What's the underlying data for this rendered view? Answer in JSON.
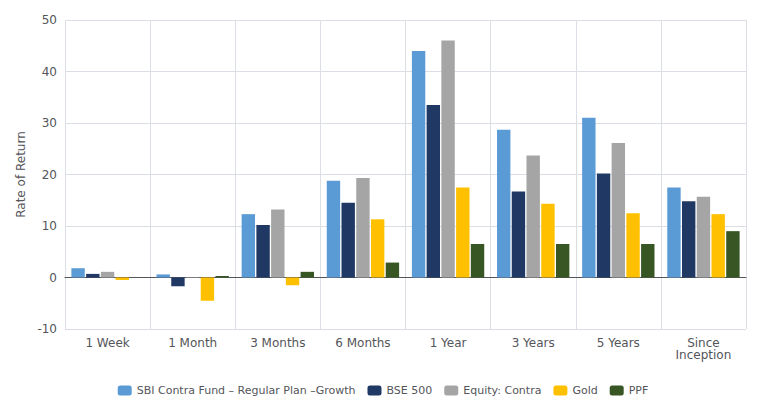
{
  "chart_data": {
    "type": "bar",
    "categories": [
      "1 Week",
      "1 Month",
      "3 Months",
      "6 Months",
      "1 Year",
      "3 Years",
      "5 Years",
      "Since\nInception"
    ],
    "series": [
      {
        "name": "SBI Contra Fund – Regular Plan –Growth",
        "color": "#5B9BD5",
        "values": [
          1.8,
          0.6,
          12.3,
          18.8,
          44.0,
          28.7,
          31.0,
          17.5
        ]
      },
      {
        "name": "BSE 500",
        "color": "#203864",
        "values": [
          0.7,
          -1.7,
          10.2,
          14.5,
          33.5,
          16.7,
          20.2,
          14.8
        ]
      },
      {
        "name": "Equity: Contra",
        "color": "#A5A5A5",
        "values": [
          1.1,
          -0.1,
          13.2,
          19.3,
          46.0,
          23.7,
          26.1,
          15.7
        ]
      },
      {
        "name": "Gold",
        "color": "#FFC000",
        "values": [
          -0.5,
          -4.5,
          -1.5,
          11.3,
          17.5,
          14.3,
          12.5,
          12.3
        ]
      },
      {
        "name": "PPF",
        "color": "#375623",
        "values": [
          0.0,
          0.3,
          1.1,
          2.9,
          6.5,
          6.5,
          6.5,
          9.0
        ]
      }
    ],
    "ylabel": "Rate of Return",
    "ylim": [
      -10,
      50
    ],
    "yticks": [
      -10,
      0,
      10,
      20,
      30,
      40,
      50
    ],
    "grid": true,
    "legend": "bottom"
  }
}
